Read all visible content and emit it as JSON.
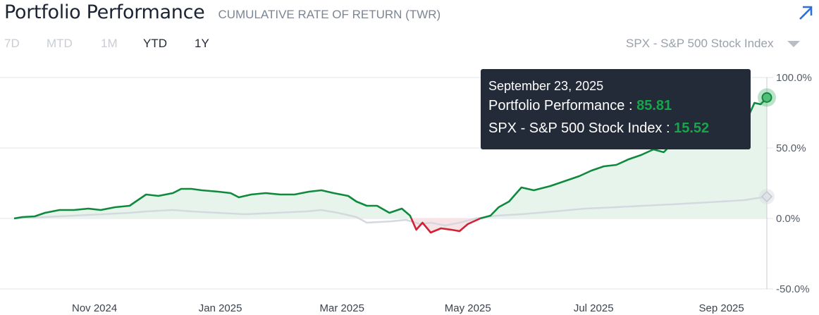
{
  "header": {
    "title": "Portfolio Performance",
    "subtitle": "CUMULATIVE RATE OF RETURN (TWR)",
    "expand_icon": "arrow-up-right-icon",
    "expand_color": "#2f6fd6"
  },
  "ranges": [
    {
      "label": "7D",
      "state": "disabled"
    },
    {
      "label": "MTD",
      "state": "disabled"
    },
    {
      "label": "1M",
      "state": "disabled"
    },
    {
      "label": "YTD",
      "state": "enabled"
    },
    {
      "label": "1Y",
      "state": "selected"
    }
  ],
  "benchmark_select": {
    "label": "SPX - S&P 500 Stock Index",
    "icon": "caret-down-icon"
  },
  "tooltip": {
    "date": "September 23, 2025",
    "portfolio_label": "Portfolio Performance :",
    "portfolio_value": "85.81",
    "benchmark_label": "SPX - S&P 500 Stock Index :",
    "benchmark_value": "15.52"
  },
  "chart_data": {
    "type": "area",
    "x_unit": "date",
    "ylim": [
      -50,
      100
    ],
    "y_ticks": [
      "100.0%",
      "50.0%",
      "0.0%",
      "-50.0%"
    ],
    "y_tick_values": [
      100,
      50,
      0,
      -50
    ],
    "x_ticks": [
      "Nov 2024",
      "Jan 2025",
      "Mar 2025",
      "May 2025",
      "Jul 2025",
      "Sep 2025"
    ],
    "x_tick_dates": [
      "2024-11-01",
      "2025-01-01",
      "2025-03-01",
      "2025-05-01",
      "2025-07-01",
      "2025-09-01"
    ],
    "grid": true,
    "colors": {
      "portfolio_up": "#0f8a3d",
      "portfolio_down": "#cf2234",
      "benchmark": "#d4d9df",
      "fill_up": "#e7f4ec",
      "fill_down": "#f8e4e6",
      "grid": "#e3e6ea"
    },
    "series": [
      {
        "name": "Portfolio Performance",
        "points": [
          [
            "2024-09-23",
            0
          ],
          [
            "2024-09-27",
            1
          ],
          [
            "2024-10-03",
            1.5
          ],
          [
            "2024-10-08",
            4
          ],
          [
            "2024-10-15",
            6
          ],
          [
            "2024-10-22",
            6
          ],
          [
            "2024-10-29",
            7
          ],
          [
            "2024-11-04",
            6
          ],
          [
            "2024-11-11",
            8
          ],
          [
            "2024-11-18",
            9
          ],
          [
            "2024-11-21",
            12
          ],
          [
            "2024-11-26",
            17
          ],
          [
            "2024-12-02",
            16
          ],
          [
            "2024-12-09",
            18
          ],
          [
            "2024-12-13",
            21
          ],
          [
            "2024-12-18",
            21
          ],
          [
            "2024-12-23",
            20
          ],
          [
            "2024-12-31",
            19
          ],
          [
            "2025-01-06",
            18
          ],
          [
            "2025-01-10",
            15
          ],
          [
            "2025-01-16",
            17
          ],
          [
            "2025-01-23",
            18
          ],
          [
            "2025-01-30",
            17
          ],
          [
            "2025-02-06",
            17
          ],
          [
            "2025-02-13",
            19
          ],
          [
            "2025-02-19",
            20
          ],
          [
            "2025-02-25",
            18
          ],
          [
            "2025-03-04",
            16
          ],
          [
            "2025-03-08",
            12
          ],
          [
            "2025-03-13",
            9
          ],
          [
            "2025-03-18",
            9
          ],
          [
            "2025-03-24",
            4
          ],
          [
            "2025-03-30",
            7
          ],
          [
            "2025-04-03",
            2
          ],
          [
            "2025-04-06",
            -8
          ],
          [
            "2025-04-09",
            -3
          ],
          [
            "2025-04-13",
            -10
          ],
          [
            "2025-04-18",
            -7
          ],
          [
            "2025-04-23",
            -8
          ],
          [
            "2025-04-27",
            -9
          ],
          [
            "2025-05-01",
            -4
          ],
          [
            "2025-05-07",
            0
          ],
          [
            "2025-05-12",
            2
          ],
          [
            "2025-05-16",
            8
          ],
          [
            "2025-05-21",
            12
          ],
          [
            "2025-05-27",
            22
          ],
          [
            "2025-06-02",
            20
          ],
          [
            "2025-06-10",
            23
          ],
          [
            "2025-06-18",
            27
          ],
          [
            "2025-06-24",
            30
          ],
          [
            "2025-06-30",
            34
          ],
          [
            "2025-07-06",
            37
          ],
          [
            "2025-07-12",
            38
          ],
          [
            "2025-07-18",
            42
          ],
          [
            "2025-07-24",
            45
          ],
          [
            "2025-07-30",
            49
          ],
          [
            "2025-08-04",
            47
          ],
          [
            "2025-08-08",
            53
          ],
          [
            "2025-08-14",
            55
          ],
          [
            "2025-08-20",
            60
          ],
          [
            "2025-08-26",
            67
          ],
          [
            "2025-09-01",
            70
          ],
          [
            "2025-09-07",
            66
          ],
          [
            "2025-09-13",
            69
          ],
          [
            "2025-09-17",
            82
          ],
          [
            "2025-09-20",
            81
          ],
          [
            "2025-09-23",
            85.81
          ]
        ]
      },
      {
        "name": "SPX - S&P 500 Stock Index",
        "points": [
          [
            "2024-09-23",
            0
          ],
          [
            "2024-10-08",
            1
          ],
          [
            "2024-10-22",
            2
          ],
          [
            "2024-11-05",
            3
          ],
          [
            "2024-11-18",
            4
          ],
          [
            "2024-11-26",
            5
          ],
          [
            "2024-12-09",
            6
          ],
          [
            "2024-12-18",
            5
          ],
          [
            "2024-12-31",
            4
          ],
          [
            "2025-01-13",
            3
          ],
          [
            "2025-01-28",
            4
          ],
          [
            "2025-02-12",
            5
          ],
          [
            "2025-02-19",
            6
          ],
          [
            "2025-02-27",
            4
          ],
          [
            "2025-03-08",
            1
          ],
          [
            "2025-03-13",
            -3
          ],
          [
            "2025-03-25",
            -2
          ],
          [
            "2025-04-01",
            -1
          ],
          [
            "2025-04-08",
            -4
          ],
          [
            "2025-04-13",
            -3
          ],
          [
            "2025-04-20",
            -5
          ],
          [
            "2025-04-27",
            -3
          ],
          [
            "2025-05-05",
            0
          ],
          [
            "2025-05-15",
            2
          ],
          [
            "2025-05-27",
            3
          ],
          [
            "2025-06-12",
            5
          ],
          [
            "2025-06-27",
            7
          ],
          [
            "2025-07-12",
            8
          ],
          [
            "2025-07-25",
            9
          ],
          [
            "2025-08-08",
            10
          ],
          [
            "2025-08-20",
            11
          ],
          [
            "2025-09-01",
            12
          ],
          [
            "2025-09-12",
            13
          ],
          [
            "2025-09-23",
            15.52
          ]
        ]
      }
    ]
  }
}
